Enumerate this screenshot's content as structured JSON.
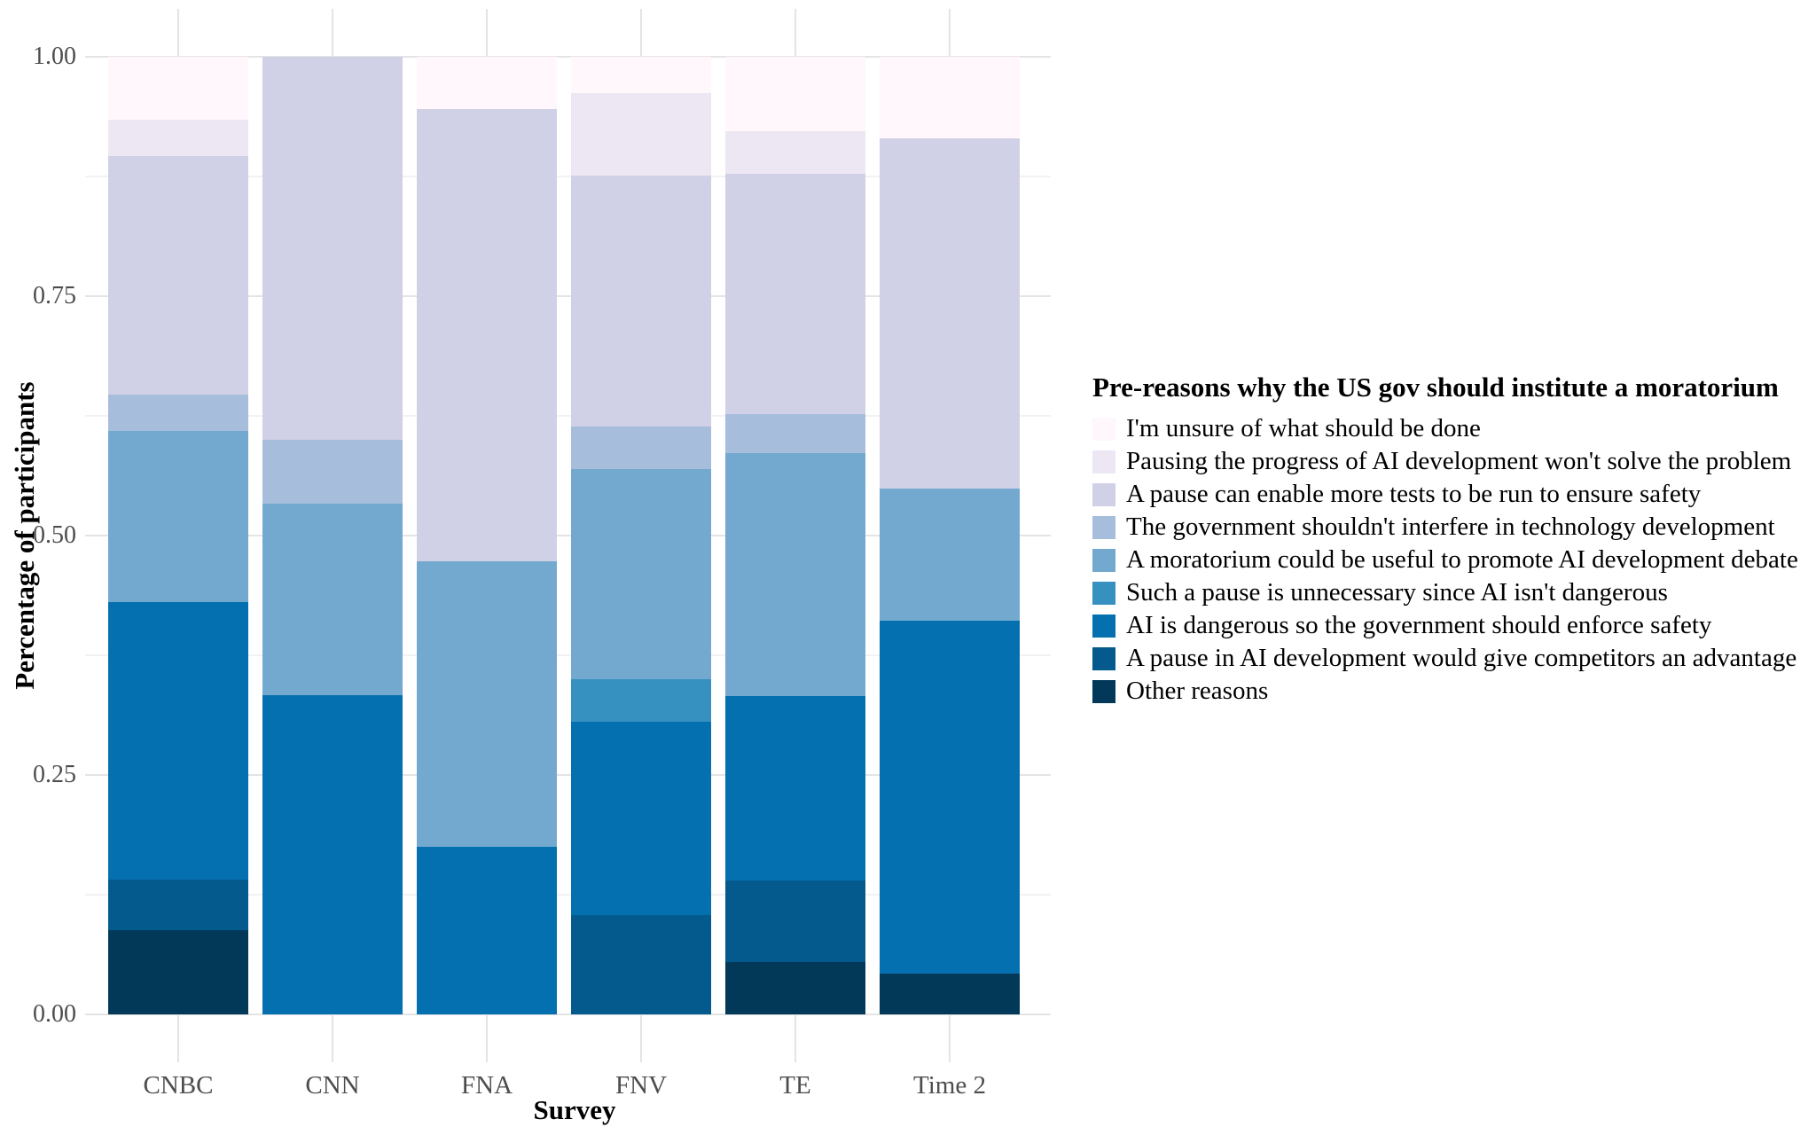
{
  "chart_data": {
    "type": "stacked-bar",
    "orientation": "vertical",
    "xlabel": "Survey",
    "ylabel": "Percentage of participants",
    "legend_title": "Pre-reasons why the US gov should institute a moratorium",
    "legend_position": "right",
    "grid": true,
    "ylim": [
      0,
      1
    ],
    "y_ticks": [
      {
        "label": "0.00",
        "value": 0.0
      },
      {
        "label": "0.25",
        "value": 0.25
      },
      {
        "label": "0.50",
        "value": 0.5
      },
      {
        "label": "0.75",
        "value": 0.75
      },
      {
        "label": "1.00",
        "value": 1.0
      }
    ],
    "y_minor_ticks": [
      0.125,
      0.375,
      0.625,
      0.875
    ],
    "categories": [
      "CNBC",
      "CNN",
      "FNA",
      "FNV",
      "TE",
      "Time 2"
    ],
    "stack_note": "series are listed in legend order; the first series is the TOP segment of each bar",
    "series": [
      {
        "name": "I'm unsure of what should be done",
        "color": "#fff7fb",
        "values": [
          0.066,
          0.0,
          0.055,
          0.038,
          0.078,
          0.085
        ]
      },
      {
        "name": "Pausing the progress of AI development won't solve the problem",
        "color": "#ece7f2",
        "values": [
          0.038,
          0.0,
          0.0,
          0.086,
          0.044,
          0.0
        ]
      },
      {
        "name": "A pause can enable more tests to be run to ensure safety",
        "color": "#d0d1e6",
        "values": [
          0.249,
          0.4,
          0.472,
          0.262,
          0.251,
          0.366
        ]
      },
      {
        "name": "The government shouldn't interfere in technology development",
        "color": "#a6bddb",
        "values": [
          0.038,
          0.067,
          0.0,
          0.045,
          0.041,
          0.0
        ]
      },
      {
        "name": "A moratorium could be useful to promote AI development debate",
        "color": "#74a9cf",
        "values": [
          0.178,
          0.2,
          0.298,
          0.219,
          0.254,
          0.138
        ]
      },
      {
        "name": "Such a pause is unnecessary since AI isn't dangerous",
        "color": "#3690c0",
        "values": [
          0.0,
          0.0,
          0.0,
          0.044,
          0.0,
          0.0
        ]
      },
      {
        "name": "AI is dangerous so the government should enforce safety",
        "color": "#0570b0",
        "values": [
          0.29,
          0.333,
          0.175,
          0.202,
          0.192,
          0.368
        ]
      },
      {
        "name": "A pause in AI development would give competitors an advantage",
        "color": "#045a8d",
        "values": [
          0.053,
          0.0,
          0.0,
          0.104,
          0.085,
          0.0
        ]
      },
      {
        "name": "Other reasons",
        "color": "#023858",
        "values": [
          0.088,
          0.0,
          0.0,
          0.0,
          0.055,
          0.043
        ]
      }
    ],
    "colors": {
      "grid_major": "#e4e4e4",
      "grid_minor": "#f2f2f2",
      "axis_text": "#4d4d4d",
      "axis_title": "#000000",
      "background": "#ffffff"
    }
  }
}
